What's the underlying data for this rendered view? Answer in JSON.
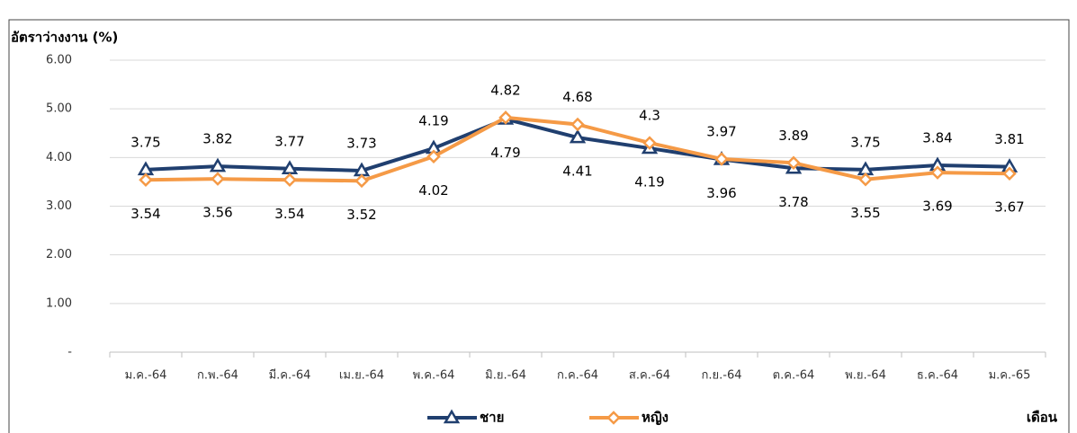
{
  "chart_data": {
    "type": "line",
    "y_axis_label": "อัตราว่างงาน (%)",
    "x_axis_label": "เดือน",
    "categories": [
      "ม.ค.-64",
      "ก.พ.-64",
      "มี.ค.-64",
      "เม.ย.-64",
      "พ.ค.-64",
      "มิ.ย.-64",
      "ก.ค.-64",
      "ส.ค.-64",
      "ก.ย.-64",
      "ต.ค.-64",
      "พ.ย.-64",
      "ธ.ค.-64",
      "ม.ค.-65"
    ],
    "series": [
      {
        "name": "ชาย",
        "color": "#203f6f",
        "marker": "triangle",
        "values": [
          3.75,
          3.82,
          3.77,
          3.73,
          4.19,
          4.79,
          4.41,
          4.19,
          3.96,
          3.78,
          3.75,
          3.84,
          3.81
        ]
      },
      {
        "name": "หญิง",
        "color": "#f59a46",
        "marker": "diamond",
        "values": [
          3.54,
          3.56,
          3.54,
          3.52,
          4.02,
          4.82,
          4.68,
          4.3,
          3.97,
          3.89,
          3.55,
          3.69,
          3.67
        ]
      }
    ],
    "ylim": [
      0,
      6
    ],
    "yticks": [
      {
        "value": 0,
        "label": "-"
      },
      {
        "value": 1,
        "label": "1.00"
      },
      {
        "value": 2,
        "label": "2.00"
      },
      {
        "value": 3,
        "label": "3.00"
      },
      {
        "value": 4,
        "label": "4.00"
      },
      {
        "value": 5,
        "label": "5.00"
      },
      {
        "value": 6,
        "label": "6.00"
      }
    ],
    "grid": true,
    "legend": "bottom"
  }
}
